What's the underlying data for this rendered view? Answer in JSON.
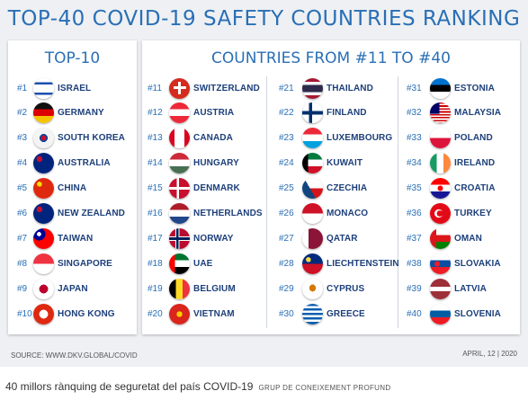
{
  "title": "TOP-40 COVID-19 SAFETY COUNTRIES RANKING",
  "top10_title": "TOP-10",
  "rest_title": "COUNTRIES FROM #11 TO #40",
  "source": "SOURCE: WWW.DKV.GLOBAL/COVID",
  "date": "APRIL, 12 | 2020",
  "caption": "40 millors rànquing de seguretat del país COVID-19",
  "caption_credit": "GRUP DE CONEIXEMENT PROFUND",
  "countries": [
    {
      "rank": "#1",
      "name": "ISRAEL",
      "flag": "israel-flag-icon",
      "bg": "linear-gradient(#fff 0 20%, #1d4fb0 20% 30%, #fff 30% 70%, #1d4fb0 70% 80%, #fff 80%)"
    },
    {
      "rank": "#2",
      "name": "GERMANY",
      "flag": "germany-flag-icon",
      "bg": "linear-gradient(#111 0 33%, #d00 33% 66%, #f5c400 66%)"
    },
    {
      "rank": "#3",
      "name": "SOUTH KOREA",
      "flag": "south-korea-flag-icon",
      "bg": "radial-gradient(circle at 50% 50%, #c8102e 0 18%, #0047a0 18% 28%, #f4f4f4 28%)"
    },
    {
      "rank": "#4",
      "name": "AUSTRALIA",
      "flag": "australia-flag-icon",
      "bg": "radial-gradient(circle at 30% 30%, #c8102e 0 14%, #00247d 14%)"
    },
    {
      "rank": "#5",
      "name": "CHINA",
      "flag": "china-flag-icon",
      "bg": "radial-gradient(circle at 30% 30%, #ffde00 0 12%, #de2910 12%)"
    },
    {
      "rank": "#6",
      "name": "NEW ZEALAND",
      "flag": "new-zealand-flag-icon",
      "bg": "radial-gradient(circle at 30% 30%, #c8102e 0 14%, #00247d 14%)"
    },
    {
      "rank": "#7",
      "name": "TAIWAN",
      "flag": "taiwan-flag-icon",
      "bg": "radial-gradient(circle at 28% 28%, #fff 0 10%, #000095 10% 30%, transparent 30%), #fe0000"
    },
    {
      "rank": "#8",
      "name": "SINGAPORE",
      "flag": "singapore-flag-icon",
      "bg": "linear-gradient(#ef3340 0 50%, #fff 50%)"
    },
    {
      "rank": "#9",
      "name": "JAPAN",
      "flag": "japan-flag-icon",
      "bg": "radial-gradient(circle, #bc002d 0 30%, #fff 30%)"
    },
    {
      "rank": "#10",
      "name": "HONG KONG",
      "flag": "hong-kong-flag-icon",
      "bg": "radial-gradient(circle, #fff 0 30%, #de2910 30%)"
    },
    {
      "rank": "#11",
      "name": "SWITZERLAND",
      "flag": "switzerland-flag-icon",
      "bg": "linear-gradient(#fff, #fff) center/14% 60% no-repeat, linear-gradient(#fff, #fff) center/60% 14% no-repeat, #d52b1e"
    },
    {
      "rank": "#12",
      "name": "AUSTRIA",
      "flag": "austria-flag-icon",
      "bg": "linear-gradient(#ed2939 0 33%, #fff 33% 66%, #ed2939 66%)"
    },
    {
      "rank": "#13",
      "name": "CANADA",
      "flag": "canada-flag-icon",
      "bg": "linear-gradient(90deg, #d80621 0 25%, #fff 25% 75%, #d80621 75%)"
    },
    {
      "rank": "#14",
      "name": "HUNGARY",
      "flag": "hungary-flag-icon",
      "bg": "linear-gradient(#ce2939 0 33%, #fff 33% 66%, #477050 66%)"
    },
    {
      "rank": "#15",
      "name": "DENMARK",
      "flag": "denmark-flag-icon",
      "bg": "linear-gradient(90deg, transparent 0 36%, #fff 36% 48%, transparent 48%), linear-gradient(transparent 0 44%, #fff 44% 56%, transparent 56%), #c8102e"
    },
    {
      "rank": "#16",
      "name": "NETHERLANDS",
      "flag": "netherlands-flag-icon",
      "bg": "linear-gradient(#ae1c28 0 33%, #fff 33% 66%, #21468b 66%)"
    },
    {
      "rank": "#17",
      "name": "NORWAY",
      "flag": "norway-flag-icon",
      "bg": "linear-gradient(90deg, transparent 0 34%, #00205b 34% 46%, transparent 46%), linear-gradient(transparent 0 44%, #00205b 44% 56%, transparent 56%), linear-gradient(90deg, transparent 0 30%, #fff 30% 50%, transparent 50%), linear-gradient(transparent 0 40%, #fff 40% 60%, transparent 60%), #ba0c2f"
    },
    {
      "rank": "#18",
      "name": "UAE",
      "flag": "uae-flag-icon",
      "bg": "linear-gradient(90deg, #ff0000 0 28%, transparent 28%), linear-gradient(#00732f 0 33%, #fff 33% 66%, #000 66%)"
    },
    {
      "rank": "#19",
      "name": "BELGIUM",
      "flag": "belgium-flag-icon",
      "bg": "linear-gradient(90deg, #000 0 33%, #fdda24 33% 66%, #ef3340 66%)"
    },
    {
      "rank": "#20",
      "name": "VIETNAM",
      "flag": "vietnam-flag-icon",
      "bg": "radial-gradient(circle, #ffcd00 0 20%, #da251d 20%)"
    },
    {
      "rank": "#21",
      "name": "THAILAND",
      "flag": "thailand-flag-icon",
      "bg": "linear-gradient(#a51931 0 17%, #f4f5f8 17% 33%, #2d2a4a 33% 67%, #f4f5f8 67% 83%, #a51931 83%)"
    },
    {
      "rank": "#22",
      "name": "FINLAND",
      "flag": "finland-flag-icon",
      "bg": "linear-gradient(90deg, transparent 0 32%, #002f6c 32% 48%, transparent 48%), linear-gradient(transparent 0 42%, #002f6c 42% 58%, transparent 58%), #fff"
    },
    {
      "rank": "#23",
      "name": "LUXEMBOURG",
      "flag": "luxembourg-flag-icon",
      "bg": "linear-gradient(#ed2939 0 33%, #fff 33% 66%, #00a1de 66%)"
    },
    {
      "rank": "#24",
      "name": "KUWAIT",
      "flag": "kuwait-flag-icon",
      "bg": "linear-gradient(90deg, #000 0 28%, transparent 28%), linear-gradient(#007a3d 0 33%, #fff 33% 66%, #ce1126 66%)"
    },
    {
      "rank": "#25",
      "name": "CZECHIA",
      "flag": "czechia-flag-icon",
      "bg": "linear-gradient(60deg, #11457e 0 42%, transparent 42%), linear-gradient(#fff 0 50%, #d7141a 50%)"
    },
    {
      "rank": "#26",
      "name": "MONACO",
      "flag": "monaco-flag-icon",
      "bg": "linear-gradient(#ce1126 0 50%, #fff 50%)"
    },
    {
      "rank": "#27",
      "name": "QATAR",
      "flag": "qatar-flag-icon",
      "bg": "linear-gradient(90deg, #fff 0 30%, #8a1538 30%)"
    },
    {
      "rank": "#28",
      "name": "LIECHTENSTEIN",
      "flag": "liechtenstein-flag-icon",
      "bg": "radial-gradient(circle at 30% 30%, #ffd83d 0 12%, transparent 12%), linear-gradient(#002b7f 0 50%, #ce1126 50%)"
    },
    {
      "rank": "#29",
      "name": "CYPRUS",
      "flag": "cyprus-flag-icon",
      "bg": "radial-gradient(ellipse at 50% 45%, #d57800 0 22%, #fff 22%)"
    },
    {
      "rank": "#30",
      "name": "GREECE",
      "flag": "greece-flag-icon",
      "bg": "repeating-linear-gradient(#0d5eaf 0 11%, #fff 11% 22%)"
    },
    {
      "rank": "#31",
      "name": "ESTONIA",
      "flag": "estonia-flag-icon",
      "bg": "linear-gradient(#0072ce 0 33%, #000 33% 66%, #fff 66%)"
    },
    {
      "rank": "#32",
      "name": "MALAYSIA",
      "flag": "malaysia-flag-icon",
      "bg": "linear-gradient(90deg, #010066 0 45%, transparent 45%) 0 0/100% 55% no-repeat, repeating-linear-gradient(#cc0001 0 7%, #fff 7% 14%)"
    },
    {
      "rank": "#33",
      "name": "POLAND",
      "flag": "poland-flag-icon",
      "bg": "linear-gradient(#fff 0 50%, #dc143c 50%)"
    },
    {
      "rank": "#34",
      "name": "IRELAND",
      "flag": "ireland-flag-icon",
      "bg": "linear-gradient(90deg, #169b62 0 33%, #fff 33% 66%, #ff883e 66%)"
    },
    {
      "rank": "#35",
      "name": "CROATIA",
      "flag": "croatia-flag-icon",
      "bg": "radial-gradient(circle, #ff0000 0 18%, transparent 18%), linear-gradient(#ff0000 0 33%, #fff 33% 66%, #171796 66%)"
    },
    {
      "rank": "#36",
      "name": "TURKEY",
      "flag": "turkey-flag-icon",
      "bg": "radial-gradient(circle at 48% 50%, #e30a17 0 20%, transparent 20%), radial-gradient(circle at 42% 50%, #fff 0 26%, #e30a17 26%)"
    },
    {
      "rank": "#37",
      "name": "OMAN",
      "flag": "oman-flag-icon",
      "bg": "linear-gradient(90deg, #db161b 0 30%, transparent 30%), linear-gradient(#fff 0 33%, #db161b 33% 66%, #008000 66%)"
    },
    {
      "rank": "#38",
      "name": "SLOVAKIA",
      "flag": "slovakia-flag-icon",
      "bg": "radial-gradient(circle at 35% 50%, #ee1c25 0 16%, transparent 16%), linear-gradient(#fff 0 33%, #0b4ea2 33% 66%, #ee1c25 66%)"
    },
    {
      "rank": "#39",
      "name": "LATVIA",
      "flag": "latvia-flag-icon",
      "bg": "linear-gradient(#9e3039 0 40%, #fff 40% 60%, #9e3039 60%)"
    },
    {
      "rank": "#40",
      "name": "SLOVENIA",
      "flag": "slovenia-flag-icon",
      "bg": "linear-gradient(#fff 0 33%, #005da4 33% 66%, #ed1c24 66%)"
    }
  ]
}
